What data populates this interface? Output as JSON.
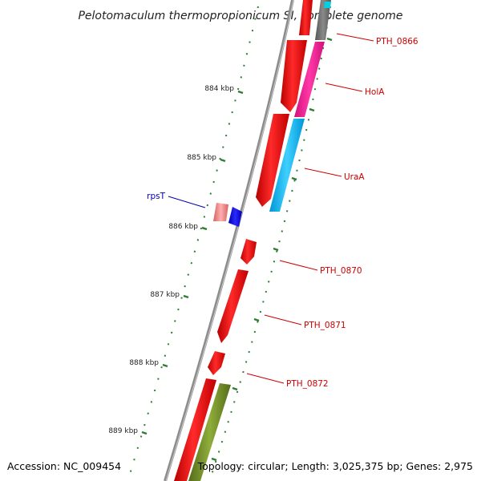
{
  "title": "Pelotomaculum thermopropionicum SI, complete genome",
  "footer": {
    "accession": "Accession: NC_009454",
    "topology": "Topology: circular; Length: 3,025,375 bp; Genes: 2,975"
  },
  "ticks": [
    {
      "label": "884 kbp"
    },
    {
      "label": "885 kbp"
    },
    {
      "label": "886 kbp"
    },
    {
      "label": "887 kbp"
    },
    {
      "label": "888 kbp"
    },
    {
      "label": "889 kbp"
    }
  ],
  "genes": [
    {
      "name": "PTH_0866",
      "color": "#cc0000"
    },
    {
      "name": "HolA",
      "color": "#cc0000"
    },
    {
      "name": "UraA",
      "color": "#cc0000"
    },
    {
      "name": "rpsT",
      "color": "#0000aa"
    },
    {
      "name": "PTH_0870",
      "color": "#cc0000"
    },
    {
      "name": "PTH_0871",
      "color": "#cc0000"
    },
    {
      "name": "PTH_0872",
      "color": "#cc0000"
    }
  ],
  "colors": {
    "backbone": "#8c8c8c",
    "forward_strand": "#ff0000",
    "reverse_strand": "#0000ff",
    "holA_feature": "#ff1493",
    "uraA_feature": "#00bfff",
    "pth0866_feature": "#707070",
    "lower_feature": "#6b8e23",
    "rpsT_rna": "#f08080",
    "tick": "#2e7d32"
  }
}
